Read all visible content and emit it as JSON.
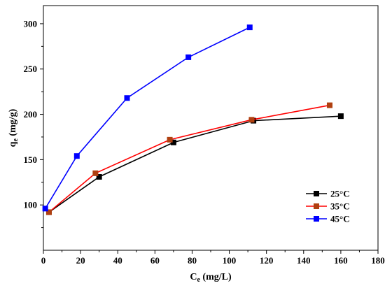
{
  "chart_data": {
    "type": "line",
    "xlabel_main": "C",
    "xlabel_sub": "e",
    "xlabel_unit": " (mg/L)",
    "ylabel_main": "q",
    "ylabel_sub": "e",
    "ylabel_unit": " (mg/g)",
    "xlim": [
      0,
      180
    ],
    "ylim": [
      50,
      320
    ],
    "xticks": [
      0,
      20,
      40,
      60,
      80,
      100,
      120,
      140,
      160,
      180
    ],
    "yticks": [
      100,
      150,
      200,
      250,
      300
    ],
    "legend_position": "right",
    "series": [
      {
        "name": "25°C",
        "line_color": "#000000",
        "marker_color": "#000000",
        "x": [
          3,
          30,
          70,
          113,
          160
        ],
        "y": [
          92,
          131,
          169,
          193,
          198
        ]
      },
      {
        "name": "35°C",
        "line_color": "#ff0000",
        "marker_color": "#b04010",
        "x": [
          3,
          28,
          68,
          112,
          154
        ],
        "y": [
          92,
          135,
          172,
          194,
          210
        ]
      },
      {
        "name": "45°C",
        "line_color": "#0000ff",
        "marker_color": "#0000ff",
        "x": [
          1,
          18,
          45,
          78,
          111
        ],
        "y": [
          96,
          154,
          218,
          263,
          296
        ]
      }
    ]
  }
}
